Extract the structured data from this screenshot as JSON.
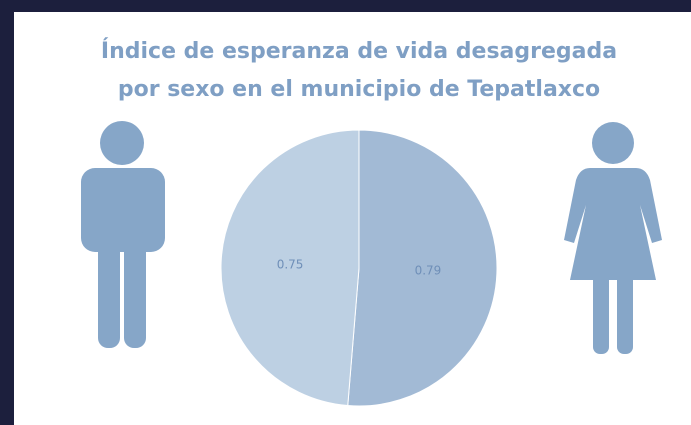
{
  "chart_data": {
    "type": "pie",
    "title": [
      "Índice de esperanza de vida desagregada",
      "por sexo en el municipio de Tepatlaxco"
    ],
    "values": [
      0.79,
      0.75
    ],
    "colors": [
      "#a2bad5",
      "#bdd0e3"
    ]
  }
}
